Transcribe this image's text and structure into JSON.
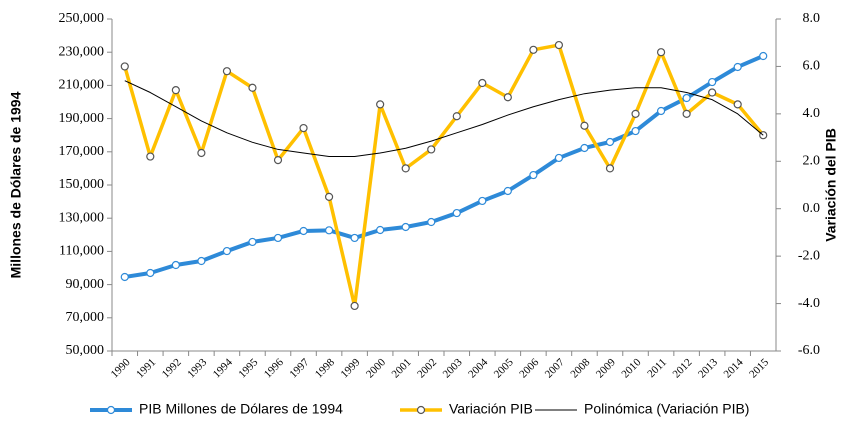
{
  "chart_data": {
    "type": "line",
    "y_label": "Millones de Dólares de 1994",
    "y2_label": "Variación del PIB",
    "categories": [
      "1990",
      "1991",
      "1992",
      "1993",
      "1994",
      "1995",
      "1996",
      "1997",
      "1998",
      "1999",
      "2000",
      "2001",
      "2002",
      "2003",
      "2004",
      "2005",
      "2006",
      "2007",
      "2008",
      "2009",
      "2010",
      "2011",
      "2012",
      "2013",
      "2014",
      "2015"
    ],
    "series": [
      {
        "name": "PIB Millones de Dólares de 1994",
        "color": "#2e8ad8",
        "marker": true,
        "width": 4,
        "values": [
          94600,
          97000,
          101800,
          104200,
          110200,
          115700,
          118100,
          122300,
          122700,
          118100,
          122900,
          124700,
          127700,
          133100,
          140400,
          146400,
          156000,
          166300,
          172300,
          175900,
          182500,
          194600,
          202400,
          212000,
          221100,
          227700
        ]
      },
      {
        "name": "Variación PIB",
        "color": "#ffc000",
        "marker": true,
        "width": 3.5,
        "axis": "y2",
        "values": [
          6.0,
          2.2,
          5.0,
          2.35,
          5.8,
          5.1,
          2.05,
          3.4,
          0.5,
          -4.1,
          4.4,
          1.7,
          2.5,
          3.9,
          5.3,
          4.7,
          6.7,
          6.9,
          3.5,
          1.7,
          4.0,
          6.6,
          4.0,
          4.9,
          4.4,
          3.1
        ]
      },
      {
        "name": "Polinómica (Variación PIB)",
        "color": "#000000",
        "marker": false,
        "width": 1,
        "axis": "y2",
        "values": [
          5.4,
          4.9,
          4.3,
          3.7,
          3.2,
          2.8,
          2.5,
          2.35,
          2.2,
          2.2,
          2.35,
          2.55,
          2.85,
          3.2,
          3.55,
          3.95,
          4.3,
          4.6,
          4.85,
          5.0,
          5.1,
          5.1,
          4.9,
          4.6,
          4.0,
          3.1
        ]
      }
    ],
    "ylim": [
      50000,
      250000
    ],
    "yticks": [
      {
        "value": 50000,
        "label": "50,000"
      },
      {
        "value": 70000,
        "label": "70,000"
      },
      {
        "value": 90000,
        "label": "90,000"
      },
      {
        "value": 110000,
        "label": "110,000"
      },
      {
        "value": 130000,
        "label": "130,000"
      },
      {
        "value": 150000,
        "label": "150,000"
      },
      {
        "value": 170000,
        "label": "170,000"
      },
      {
        "value": 190000,
        "label": "190,000"
      },
      {
        "value": 210000,
        "label": "210,000"
      },
      {
        "value": 230000,
        "label": "230,000"
      },
      {
        "value": 250000,
        "label": "250,000"
      }
    ],
    "y2lim": [
      -6,
      8
    ],
    "y2ticks": [
      {
        "value": -6,
        "label": "-6.0"
      },
      {
        "value": -4,
        "label": "-4.0"
      },
      {
        "value": -2,
        "label": "-2.0"
      },
      {
        "value": 0,
        "label": "0.0"
      },
      {
        "value": 2,
        "label": "2.0"
      },
      {
        "value": 4,
        "label": "4.0"
      },
      {
        "value": 6,
        "label": "6.0"
      },
      {
        "value": 8,
        "label": "8.0"
      }
    ],
    "grid": false,
    "legend": "bottom"
  }
}
